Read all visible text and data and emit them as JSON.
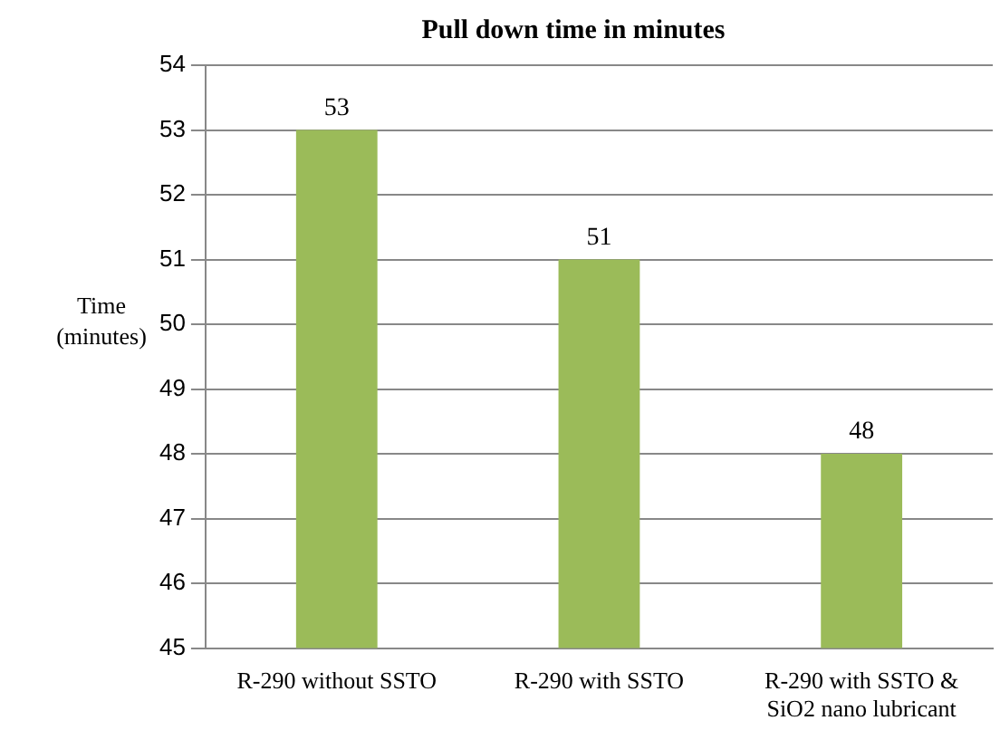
{
  "chart_data": {
    "type": "bar",
    "title": "Pull down time in minutes",
    "ylabel": "Time (minutes)",
    "categories": [
      "R-290 without SSTO",
      "R-290 with SSTO",
      "R-290 with SSTO & SiO2 nano lubricant"
    ],
    "values": [
      53,
      51,
      48
    ],
    "color": "#9bbb59",
    "ylim": [
      45,
      54
    ],
    "yticks": [
      45,
      46,
      47,
      48,
      49,
      50,
      51,
      52,
      53,
      54
    ],
    "grid": "y",
    "data_labels": true,
    "legend": false
  }
}
